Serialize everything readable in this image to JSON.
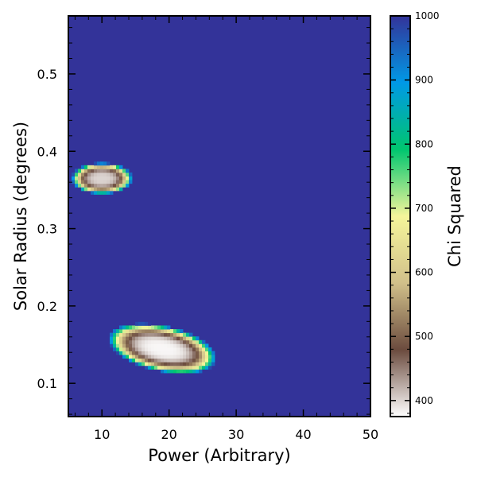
{
  "chart_data": {
    "type": "heatmap",
    "title": "",
    "xlabel": "Power (Arbitrary)",
    "ylabel": "Solar Radius (degrees)",
    "xlim": [
      5,
      50
    ],
    "ylim": [
      0.057,
      0.575
    ],
    "x_ticks": [
      10,
      20,
      30,
      40,
      50
    ],
    "y_ticks": [
      0.1,
      0.2,
      0.3,
      0.4,
      0.5
    ],
    "colorbar": {
      "label": "Chi Squared",
      "range": [
        375,
        1000
      ],
      "ticks": [
        400,
        500,
        600,
        700,
        800,
        900,
        1000
      ],
      "colormap": "terrain_r",
      "colors": [
        "#ffffff",
        "#6b4b3e",
        "#d1c08a",
        "#f5f59a",
        "#00c66f",
        "#0099e6",
        "#333399"
      ]
    },
    "background_value": 1000,
    "minima": [
      {
        "power": 10,
        "radius": 0.365,
        "min_chi_squared": 400,
        "approx_extent_power": [
          7,
          16
        ],
        "approx_extent_radius": [
          0.345,
          0.385
        ]
      },
      {
        "power": 19,
        "radius": 0.145,
        "min_chi_squared": 380,
        "approx_extent_power": [
          12,
          28
        ],
        "approx_extent_radius": [
          0.12,
          0.18
        ]
      }
    ],
    "grid": false,
    "legend": "none"
  }
}
